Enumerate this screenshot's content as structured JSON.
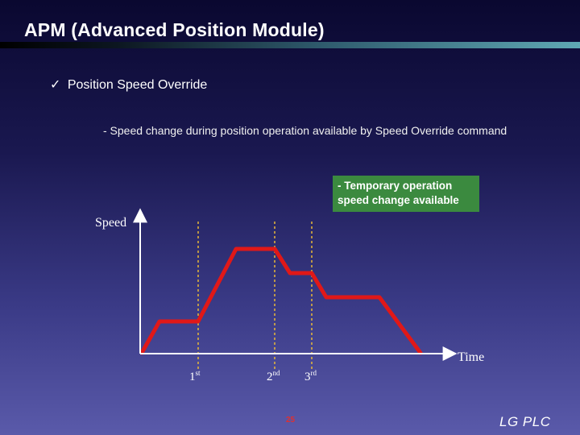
{
  "title": "APM (Advanced Position  Module)",
  "bullet": {
    "check": "✓",
    "text": "Position Speed Override"
  },
  "description": "- Speed change during position operation available by Speed Override command",
  "note": "- Temporary operation speed change available",
  "chart_data": {
    "type": "line",
    "ylabel": "Speed",
    "xlabel": "Time",
    "events": [
      {
        "label": "1",
        "suffix": "st"
      },
      {
        "label": "2",
        "suffix": "nd"
      },
      {
        "label": "3",
        "suffix": "rd"
      }
    ],
    "profile_color": "#e01818",
    "marker_color": "#e8b838"
  },
  "footer": {
    "page": "25",
    "brand": "LG  PLC"
  }
}
